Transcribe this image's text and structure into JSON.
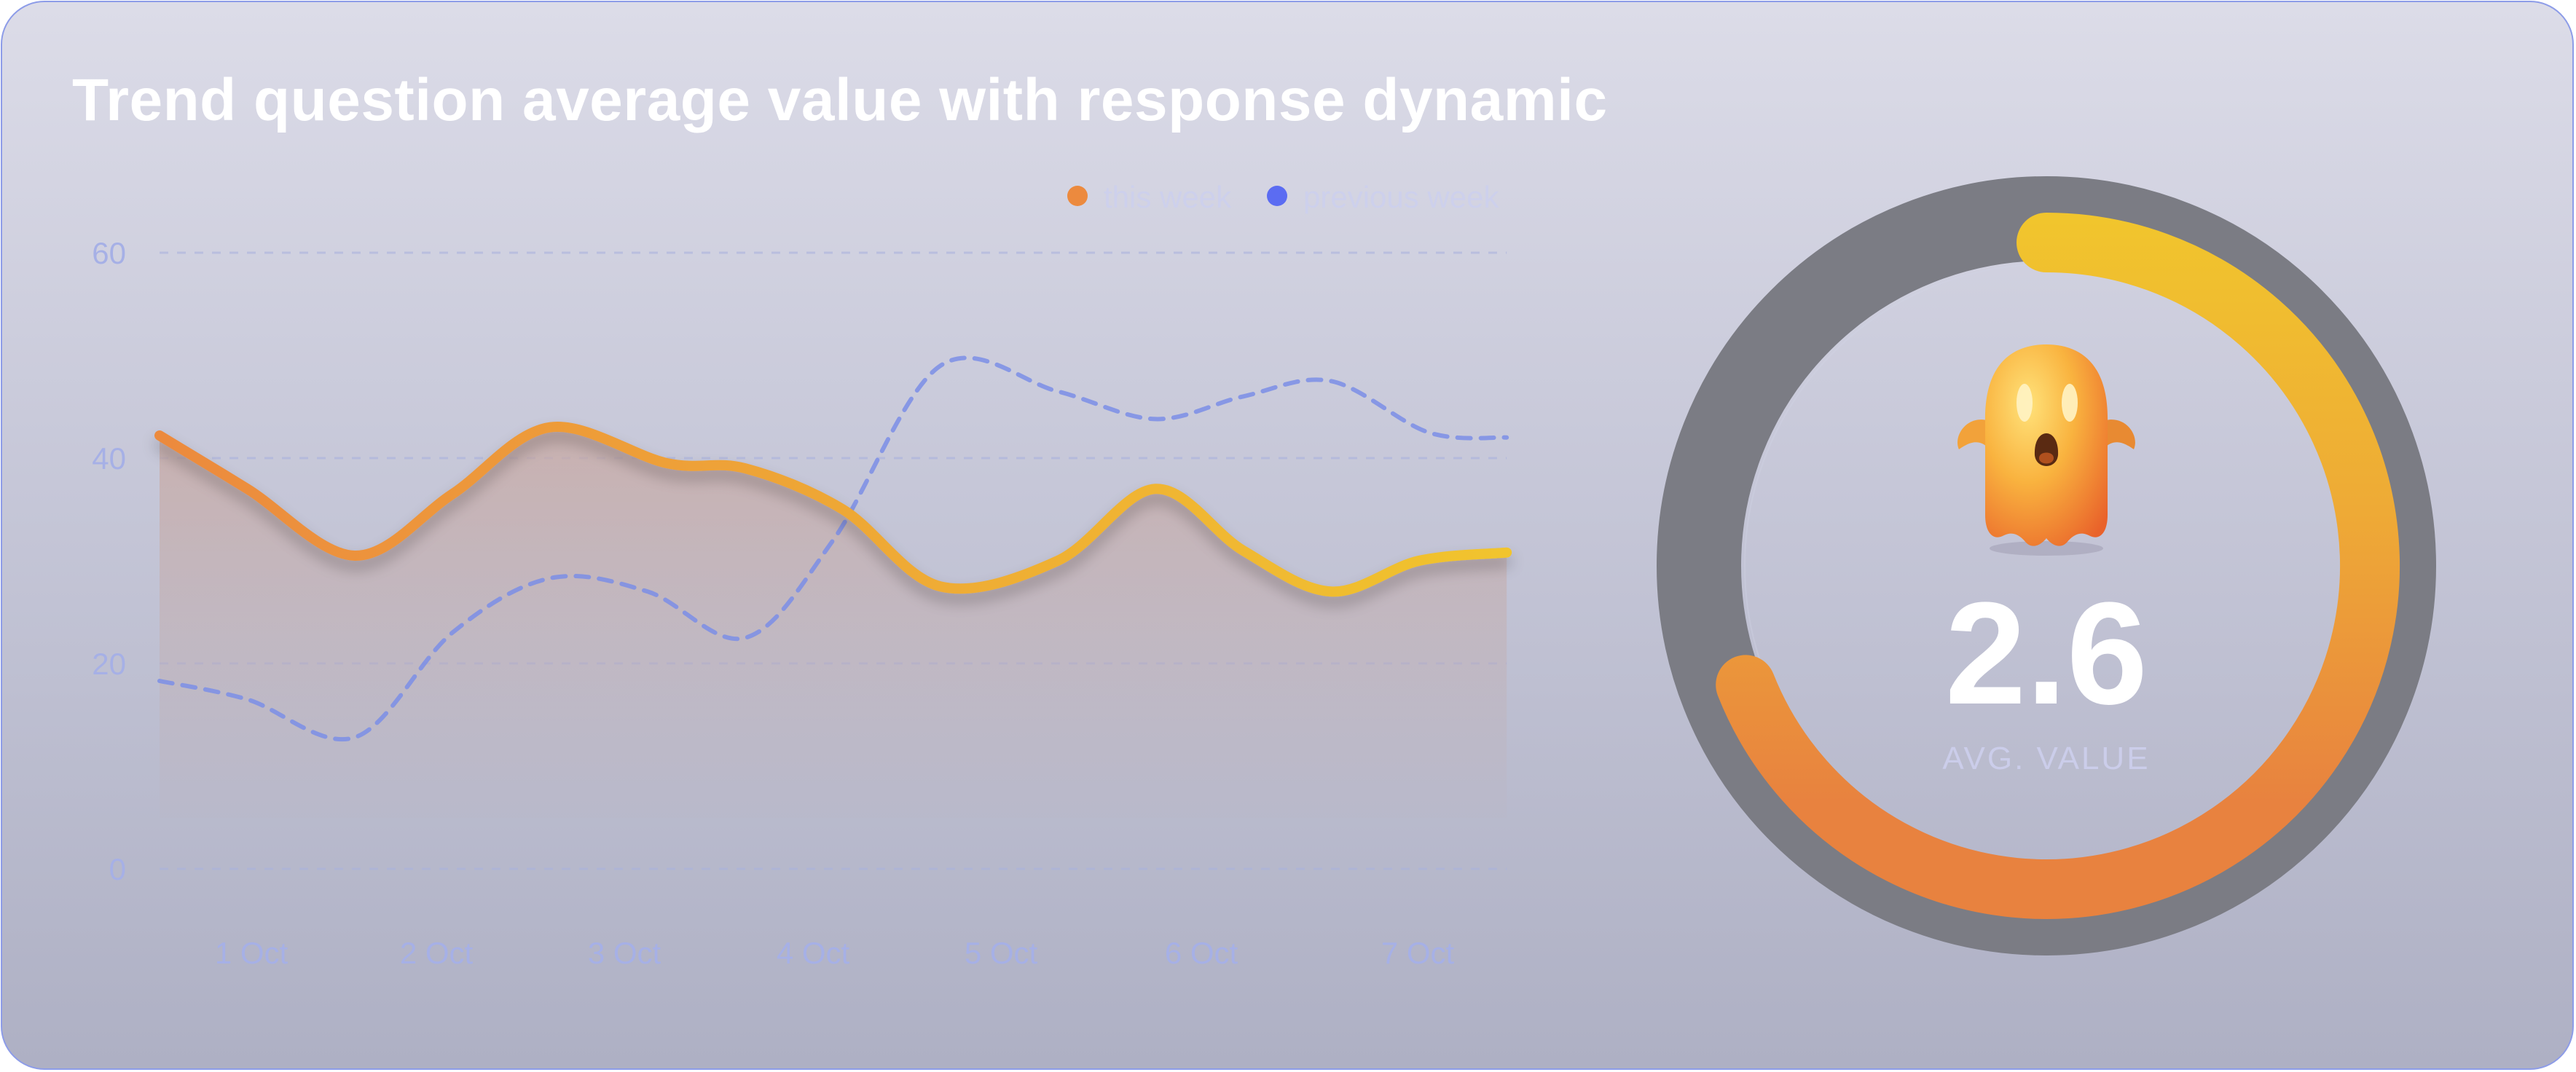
{
  "title": "Trend question average value with response dynamic",
  "colors": {
    "this_week_start": "#ec8a3e",
    "this_week_end": "#f1c52d",
    "previous_week": "#7b8ee6",
    "legend_previous_dot": "#5b6cf2",
    "gauge_track": "#7b7c84"
  },
  "legend": {
    "this_week": "this week",
    "previous_week": "previous week"
  },
  "chart_data": {
    "type": "line",
    "categories": [
      "1 Oct",
      "2 Oct",
      "3 Oct",
      "4 Oct",
      "5 Oct",
      "6 Oct",
      "7 Oct"
    ],
    "ylim": [
      0,
      60
    ],
    "yticks": [
      0,
      20,
      40,
      60
    ],
    "grid": true,
    "legend_position": "top-right",
    "series": [
      {
        "name": "this week",
        "style": "solid",
        "area": true,
        "points": [
          [
            0,
            42.2
          ],
          [
            0.45,
            37
          ],
          [
            1,
            30.5
          ],
          [
            1.5,
            36.5
          ],
          [
            2,
            43
          ],
          [
            2.6,
            39.5
          ],
          [
            3,
            39
          ],
          [
            3.5,
            35
          ],
          [
            4,
            27.5
          ],
          [
            4.6,
            30
          ],
          [
            5.1,
            37
          ],
          [
            5.55,
            31
          ],
          [
            6,
            27
          ],
          [
            6.45,
            30
          ],
          [
            6.9,
            30.8
          ]
        ]
      },
      {
        "name": "previous week",
        "style": "dashed",
        "points": [
          [
            0,
            18.3
          ],
          [
            0.45,
            16.5
          ],
          [
            1,
            12.8
          ],
          [
            1.5,
            23
          ],
          [
            2,
            28.3
          ],
          [
            2.5,
            27
          ],
          [
            3,
            22.5
          ],
          [
            3.45,
            32
          ],
          [
            4,
            49
          ],
          [
            4.6,
            46.5
          ],
          [
            5.1,
            43.8
          ],
          [
            5.55,
            46
          ],
          [
            6,
            47.5
          ],
          [
            6.5,
            42.5
          ],
          [
            6.9,
            42
          ]
        ]
      }
    ]
  },
  "gauge": {
    "value": "2.6",
    "label": "AVG. VALUE",
    "fill_fraction": 0.69,
    "icon": "ghost-scared-icon"
  }
}
